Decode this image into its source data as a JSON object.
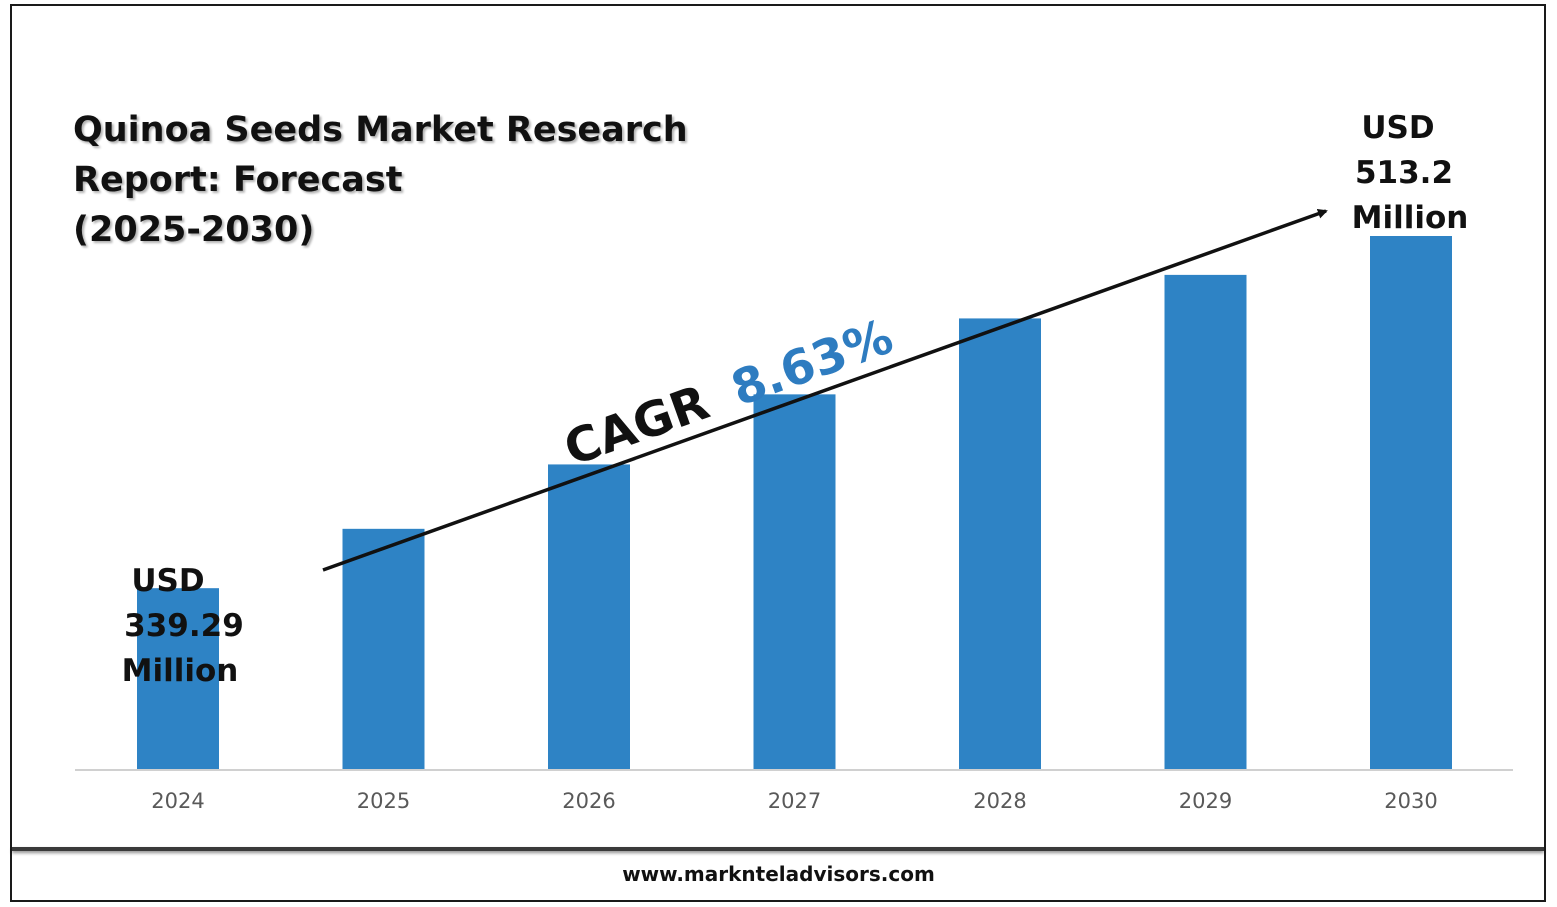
{
  "footer": {
    "url": "www.marknteladvisors.com"
  },
  "chart_data": {
    "type": "bar",
    "title_lines": [
      "Quinoa Seeds Market Research",
      "Report: Forecast",
      "(2025-2030)"
    ],
    "categories": [
      "2024",
      "2025",
      "2026",
      "2027",
      "2028",
      "2029",
      "2030"
    ],
    "values": [
      339.29,
      368.6,
      400.4,
      435.0,
      472.5,
      494.0,
      513.2
    ],
    "unit": "USD Million",
    "ylim": [
      250,
      530
    ],
    "bar_color": "#2e83c5",
    "grid": false,
    "legend": "none",
    "callouts": {
      "start": {
        "lines": [
          "USD",
          "339.29",
          "Million"
        ]
      },
      "end": {
        "lines": [
          "USD",
          "513.2",
          "Million"
        ]
      }
    },
    "annotation": {
      "label": "CAGR",
      "value": "8.63%",
      "value_color": "#2e7cc0"
    }
  }
}
